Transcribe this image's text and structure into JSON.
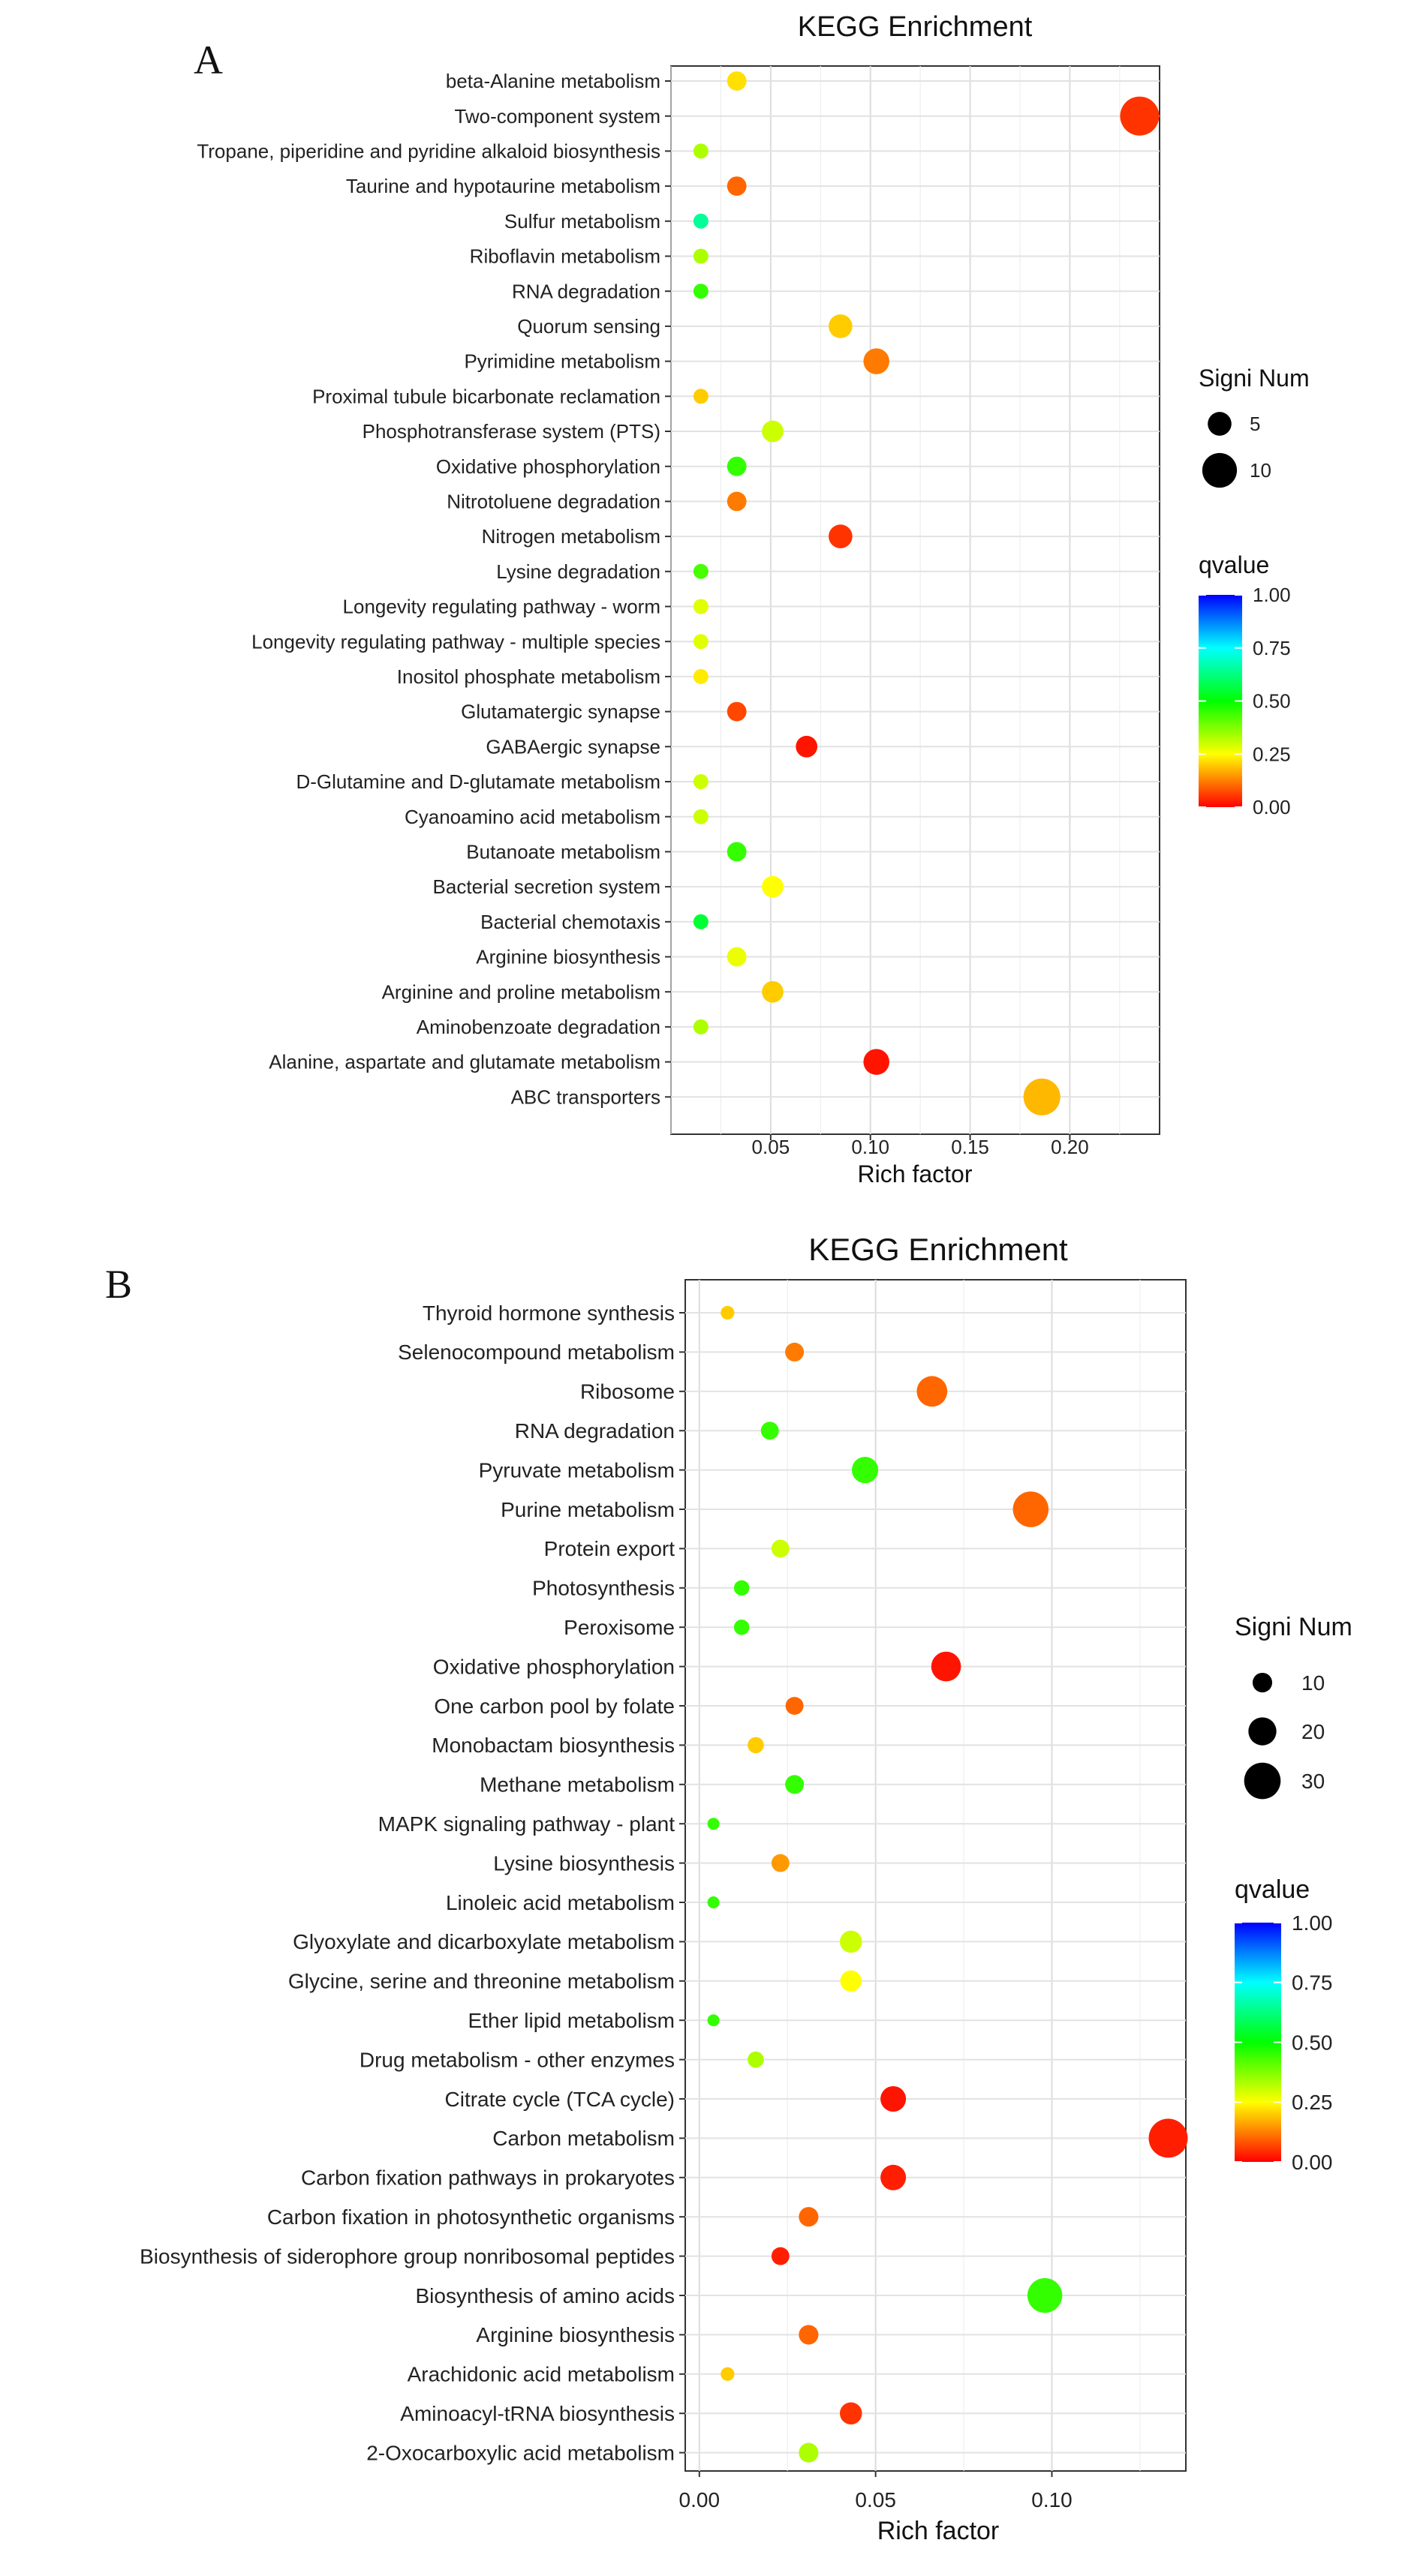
{
  "chart_data": [
    {
      "type": "scatter",
      "panel_label": "A",
      "title": "KEGG Enrichment",
      "xlabel": "Rich factor",
      "ylabel": "",
      "xlim": [
        0.0,
        0.245
      ],
      "xticks": [
        0.05,
        0.1,
        0.15,
        0.2
      ],
      "xtick_labels": [
        "0.05",
        "0.10",
        "0.15",
        "0.20"
      ],
      "grid": true,
      "size_legend": {
        "title": "Signi Num",
        "values": [
          5,
          10
        ],
        "labels": [
          "5",
          "10"
        ]
      },
      "color_legend": {
        "title": "qvalue",
        "ticks": [
          1.0,
          0.75,
          0.5,
          0.25,
          0.0
        ],
        "labels": [
          "1.00",
          "0.75",
          "0.50",
          "0.25",
          "0.00"
        ]
      },
      "points": [
        {
          "term": "beta-Alanine metabolism",
          "rich_factor": 0.033,
          "qvalue": 0.22,
          "signi_num": 3
        },
        {
          "term": "Two-component system",
          "rich_factor": 0.235,
          "qvalue": 0.05,
          "signi_num": 12
        },
        {
          "term": "Tropane, piperidine and pyridine alkaloid biosynthesis",
          "rich_factor": 0.015,
          "qvalue": 0.33,
          "signi_num": 1
        },
        {
          "term": "Taurine and hypotaurine metabolism",
          "rich_factor": 0.033,
          "qvalue": 0.1,
          "signi_num": 3
        },
        {
          "term": "Sulfur metabolism",
          "rich_factor": 0.015,
          "qvalue": 0.65,
          "signi_num": 1
        },
        {
          "term": "Riboflavin metabolism",
          "rich_factor": 0.015,
          "qvalue": 0.33,
          "signi_num": 1
        },
        {
          "term": "RNA degradation",
          "rich_factor": 0.015,
          "qvalue": 0.45,
          "signi_num": 1
        },
        {
          "term": "Quorum sensing",
          "rich_factor": 0.085,
          "qvalue": 0.2,
          "signi_num": 5
        },
        {
          "term": "Pyrimidine metabolism",
          "rich_factor": 0.103,
          "qvalue": 0.12,
          "signi_num": 6
        },
        {
          "term": "Proximal tubule bicarbonate reclamation",
          "rich_factor": 0.015,
          "qvalue": 0.2,
          "signi_num": 1
        },
        {
          "term": "Phosphotransferase system (PTS)",
          "rich_factor": 0.051,
          "qvalue": 0.3,
          "signi_num": 4
        },
        {
          "term": "Oxidative phosphorylation",
          "rich_factor": 0.033,
          "qvalue": 0.45,
          "signi_num": 3
        },
        {
          "term": "Nitrotoluene degradation",
          "rich_factor": 0.033,
          "qvalue": 0.12,
          "signi_num": 3
        },
        {
          "term": "Nitrogen metabolism",
          "rich_factor": 0.085,
          "qvalue": 0.05,
          "signi_num": 5
        },
        {
          "term": "Lysine degradation",
          "rich_factor": 0.015,
          "qvalue": 0.43,
          "signi_num": 1
        },
        {
          "term": "Longevity regulating pathway - worm",
          "rich_factor": 0.015,
          "qvalue": 0.28,
          "signi_num": 1
        },
        {
          "term": "Longevity regulating pathway - multiple species",
          "rich_factor": 0.015,
          "qvalue": 0.28,
          "signi_num": 1
        },
        {
          "term": "Inositol phosphate metabolism",
          "rich_factor": 0.015,
          "qvalue": 0.23,
          "signi_num": 1
        },
        {
          "term": "Glutamatergic synapse",
          "rich_factor": 0.033,
          "qvalue": 0.07,
          "signi_num": 3
        },
        {
          "term": "GABAergic synapse",
          "rich_factor": 0.068,
          "qvalue": 0.02,
          "signi_num": 4
        },
        {
          "term": "D-Glutamine and D-glutamate metabolism",
          "rich_factor": 0.015,
          "qvalue": 0.3,
          "signi_num": 1
        },
        {
          "term": "Cyanoamino acid metabolism",
          "rich_factor": 0.015,
          "qvalue": 0.3,
          "signi_num": 1
        },
        {
          "term": "Butanoate metabolism",
          "rich_factor": 0.033,
          "qvalue": 0.45,
          "signi_num": 3
        },
        {
          "term": "Bacterial secretion system",
          "rich_factor": 0.051,
          "qvalue": 0.25,
          "signi_num": 4
        },
        {
          "term": "Bacterial chemotaxis",
          "rich_factor": 0.015,
          "qvalue": 0.55,
          "signi_num": 1
        },
        {
          "term": "Arginine biosynthesis",
          "rich_factor": 0.033,
          "qvalue": 0.27,
          "signi_num": 3
        },
        {
          "term": "Arginine and proline metabolism",
          "rich_factor": 0.051,
          "qvalue": 0.2,
          "signi_num": 4
        },
        {
          "term": "Aminobenzoate degradation",
          "rich_factor": 0.015,
          "qvalue": 0.33,
          "signi_num": 1
        },
        {
          "term": "Alanine, aspartate and glutamate metabolism",
          "rich_factor": 0.103,
          "qvalue": 0.02,
          "signi_num": 6
        },
        {
          "term": "ABC transporters",
          "rich_factor": 0.186,
          "qvalue": 0.18,
          "signi_num": 11
        }
      ]
    },
    {
      "type": "scatter",
      "panel_label": "B",
      "title": "KEGG Enrichment",
      "xlabel": "Rich factor",
      "ylabel": "",
      "xlim": [
        -0.004,
        0.138
      ],
      "xticks": [
        0.0,
        0.05,
        0.1
      ],
      "xtick_labels": [
        "0.00",
        "0.05",
        "0.10"
      ],
      "grid": true,
      "size_legend": {
        "title": "Signi Num",
        "values": [
          10,
          20,
          30
        ],
        "labels": [
          "10",
          "20",
          "30"
        ]
      },
      "color_legend": {
        "title": "qvalue",
        "ticks": [
          1.0,
          0.75,
          0.5,
          0.25,
          0.0
        ],
        "labels": [
          "1.00",
          "0.75",
          "0.50",
          "0.25",
          "0.00"
        ]
      },
      "points": [
        {
          "term": "Thyroid hormone synthesis",
          "rich_factor": 0.008,
          "qvalue": 0.2,
          "signi_num": 3
        },
        {
          "term": "Selenocompound metabolism",
          "rich_factor": 0.027,
          "qvalue": 0.12,
          "signi_num": 9
        },
        {
          "term": "Ribosome",
          "rich_factor": 0.066,
          "qvalue": 0.1,
          "signi_num": 23
        },
        {
          "term": "RNA degradation",
          "rich_factor": 0.02,
          "qvalue": 0.45,
          "signi_num": 8
        },
        {
          "term": "Pyruvate metabolism",
          "rich_factor": 0.047,
          "qvalue": 0.45,
          "signi_num": 18
        },
        {
          "term": "Purine metabolism",
          "rich_factor": 0.094,
          "qvalue": 0.1,
          "signi_num": 29
        },
        {
          "term": "Protein export",
          "rich_factor": 0.023,
          "qvalue": 0.3,
          "signi_num": 8
        },
        {
          "term": "Photosynthesis",
          "rich_factor": 0.012,
          "qvalue": 0.45,
          "signi_num": 5
        },
        {
          "term": "Peroxisome",
          "rich_factor": 0.012,
          "qvalue": 0.45,
          "signi_num": 5
        },
        {
          "term": "Oxidative phosphorylation",
          "rich_factor": 0.07,
          "qvalue": 0.02,
          "signi_num": 22
        },
        {
          "term": "One carbon pool by folate",
          "rich_factor": 0.027,
          "qvalue": 0.1,
          "signi_num": 8
        },
        {
          "term": "Monobactam biosynthesis",
          "rich_factor": 0.016,
          "qvalue": 0.2,
          "signi_num": 6
        },
        {
          "term": "Methane metabolism",
          "rich_factor": 0.027,
          "qvalue": 0.45,
          "signi_num": 9
        },
        {
          "term": "MAPK signaling pathway - plant",
          "rich_factor": 0.004,
          "qvalue": 0.45,
          "signi_num": 1
        },
        {
          "term": "Lysine biosynthesis",
          "rich_factor": 0.023,
          "qvalue": 0.15,
          "signi_num": 8
        },
        {
          "term": "Linoleic acid metabolism",
          "rich_factor": 0.004,
          "qvalue": 0.45,
          "signi_num": 1
        },
        {
          "term": "Glyoxylate and dicarboxylate metabolism",
          "rich_factor": 0.043,
          "qvalue": 0.3,
          "signi_num": 13
        },
        {
          "term": "Glycine, serine and threonine metabolism",
          "rich_factor": 0.043,
          "qvalue": 0.25,
          "signi_num": 12
        },
        {
          "term": "Ether lipid metabolism",
          "rich_factor": 0.004,
          "qvalue": 0.45,
          "signi_num": 1
        },
        {
          "term": "Drug metabolism - other enzymes",
          "rich_factor": 0.016,
          "qvalue": 0.33,
          "signi_num": 6
        },
        {
          "term": "Citrate cycle (TCA cycle)",
          "rich_factor": 0.055,
          "qvalue": 0.02,
          "signi_num": 17
        },
        {
          "term": "Carbon metabolism",
          "rich_factor": 0.133,
          "qvalue": 0.03,
          "signi_num": 33
        },
        {
          "term": "Carbon fixation pathways in prokaryotes",
          "rich_factor": 0.055,
          "qvalue": 0.03,
          "signi_num": 17
        },
        {
          "term": "Carbon fixation in photosynthetic organisms",
          "rich_factor": 0.031,
          "qvalue": 0.1,
          "signi_num": 10
        },
        {
          "term": "Biosynthesis of siderophore group nonribosomal peptides",
          "rich_factor": 0.023,
          "qvalue": 0.03,
          "signi_num": 8
        },
        {
          "term": "Biosynthesis of amino acids",
          "rich_factor": 0.098,
          "qvalue": 0.45,
          "signi_num": 28
        },
        {
          "term": "Arginine biosynthesis",
          "rich_factor": 0.031,
          "qvalue": 0.1,
          "signi_num": 10
        },
        {
          "term": "Arachidonic acid metabolism",
          "rich_factor": 0.008,
          "qvalue": 0.2,
          "signi_num": 3
        },
        {
          "term": "Aminoacyl-tRNA biosynthesis",
          "rich_factor": 0.043,
          "qvalue": 0.05,
          "signi_num": 13
        },
        {
          "term": "2-Oxocarboxylic acid metabolism",
          "rich_factor": 0.031,
          "qvalue": 0.33,
          "signi_num": 10
        }
      ]
    }
  ]
}
